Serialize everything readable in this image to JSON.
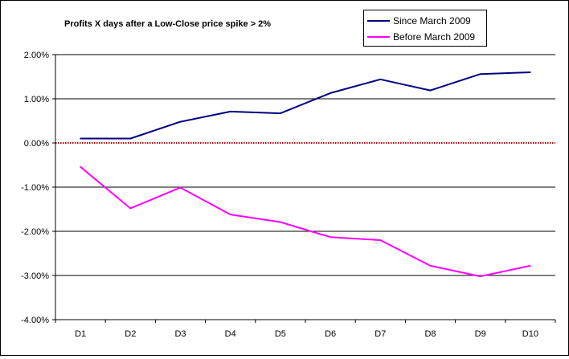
{
  "chart_data": {
    "type": "line",
    "title": "Profits X days after a Low-Close price spike > 2%",
    "categories": [
      "D1",
      "D2",
      "D3",
      "D4",
      "D5",
      "D6",
      "D7",
      "D8",
      "D9",
      "D10"
    ],
    "series": [
      {
        "name": "Since March 2009",
        "color": "#000080",
        "values": [
          0.001,
          0.001,
          0.0048,
          0.0071,
          0.0067,
          0.0113,
          0.0144,
          0.0119,
          0.0156,
          0.016
        ]
      },
      {
        "name": "Before March 2009",
        "color": "#ff00ff",
        "values": [
          -0.0054,
          -0.0148,
          -0.0101,
          -0.0162,
          -0.0179,
          -0.0213,
          -0.022,
          -0.0278,
          -0.0302,
          -0.0278
        ]
      }
    ],
    "ylim": [
      -0.04,
      0.02
    ],
    "yticks": [
      0.02,
      0.01,
      0.0,
      -0.01,
      -0.02,
      -0.03,
      -0.04
    ],
    "ytick_labels": [
      "2.00%",
      "1.00%",
      "0.00%",
      "-1.00%",
      "-2.00%",
      "-3.00%",
      "-4.00%"
    ],
    "xlabel": "",
    "ylabel": "",
    "grid": true,
    "legend_position": "top-right",
    "zero_line_color": "#c00000",
    "grid_color": "#000000"
  }
}
